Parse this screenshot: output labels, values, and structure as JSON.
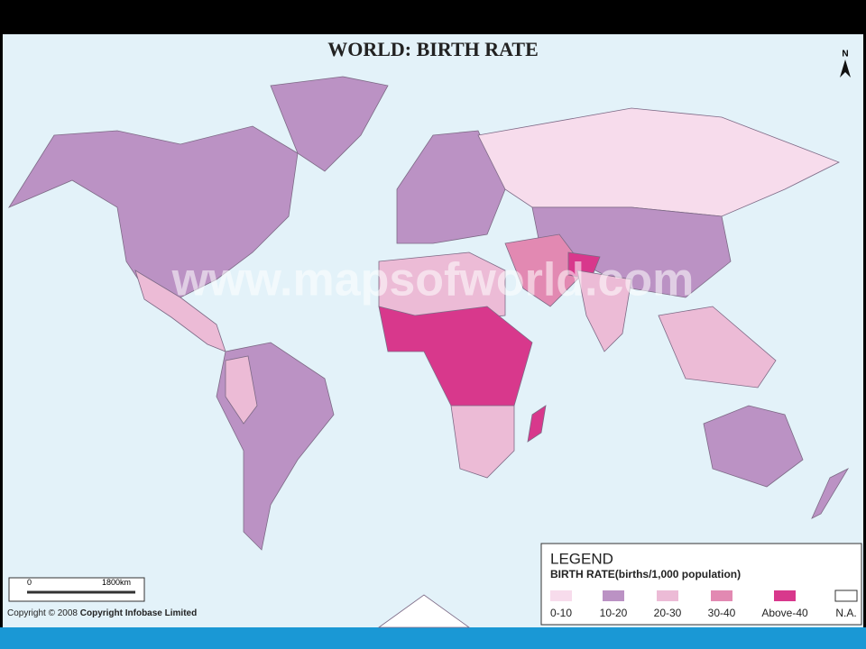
{
  "header": {
    "title": "WORLD: BIRTH RATE",
    "north": "N",
    "watermark": "www.mapsofworld.com"
  },
  "legend": {
    "heading": "LEGEND",
    "subtitle": "BIRTH RATE(births/1,000 population)",
    "items": [
      {
        "label": "0-10",
        "color": "#f7dcec"
      },
      {
        "label": "10-20",
        "color": "#bb92c4"
      },
      {
        "label": "20-30",
        "color": "#ecbbd6"
      },
      {
        "label": "30-40",
        "color": "#e289b2"
      },
      {
        "label": "Above-40",
        "color": "#d8388c"
      },
      {
        "label": "N.A.",
        "color": "#ffffff"
      }
    ]
  },
  "scale": {
    "start": "0",
    "end": "1800km"
  },
  "footer": {
    "copyright": "Copyright © 2008",
    "holder": "Copyright Infobase Limited"
  }
}
